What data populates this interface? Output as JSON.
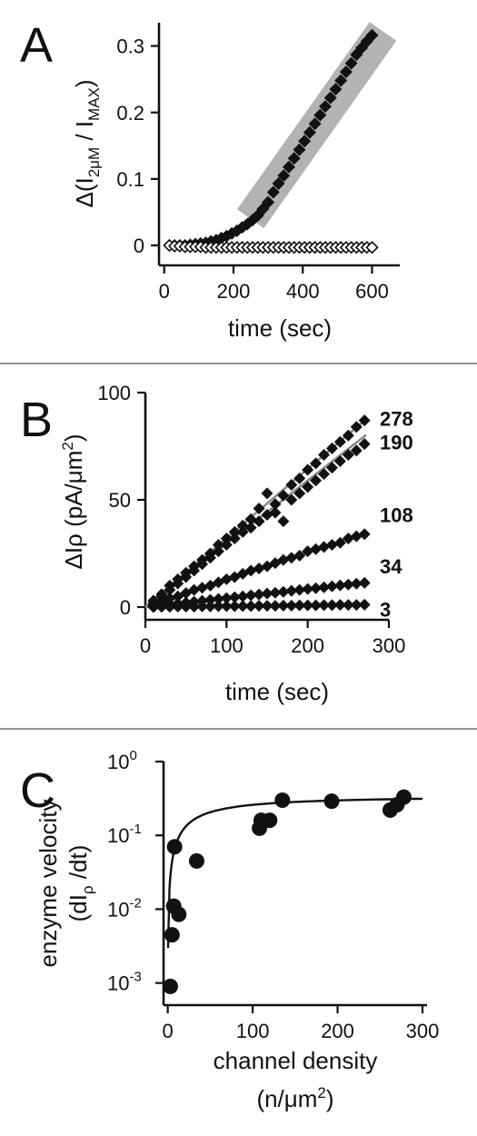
{
  "chart_data": [
    {
      "panel": "A",
      "type": "scatter",
      "ylabel_parts": {
        "prefix": "Δ(I",
        "sub1": "2μM",
        "middle": " / I",
        "sub2": "MAX",
        "suffix": ")"
      },
      "xlabel": "time (sec)",
      "xlim": [
        -15,
        680
      ],
      "ylim": [
        -0.03,
        0.335
      ],
      "xticks": [
        "0",
        "200",
        "400",
        "600"
      ],
      "yticks": [
        "0",
        "0.1",
        "0.2",
        "0.3"
      ],
      "grid": false,
      "highlight": {
        "x_range": [
          270,
          600
        ],
        "note": "shaded linear region"
      },
      "series": [
        {
          "marker": "filled-diamond",
          "x": [
            15,
            30,
            45,
            60,
            75,
            90,
            105,
            120,
            135,
            150,
            165,
            180,
            195,
            210,
            225,
            240,
            255,
            270,
            285,
            300,
            315,
            330,
            345,
            360,
            375,
            390,
            405,
            420,
            435,
            450,
            465,
            480,
            495,
            510,
            525,
            540,
            555,
            570,
            585,
            600
          ],
          "y": [
            0.0,
            0.0,
            0.0,
            0.0,
            0.001,
            0.002,
            0.003,
            0.004,
            0.006,
            0.008,
            0.011,
            0.014,
            0.018,
            0.022,
            0.027,
            0.032,
            0.038,
            0.045,
            0.055,
            0.065,
            0.08,
            0.093,
            0.105,
            0.118,
            0.131,
            0.144,
            0.157,
            0.17,
            0.183,
            0.196,
            0.209,
            0.222,
            0.235,
            0.248,
            0.261,
            0.274,
            0.287,
            0.297,
            0.307,
            0.316
          ]
        },
        {
          "marker": "open-diamond",
          "x": [
            15,
            30,
            45,
            60,
            75,
            90,
            105,
            120,
            135,
            150,
            165,
            180,
            195,
            210,
            225,
            240,
            255,
            270,
            285,
            300,
            315,
            330,
            345,
            360,
            375,
            390,
            405,
            420,
            435,
            450,
            465,
            480,
            495,
            510,
            525,
            540,
            555,
            570,
            585,
            600
          ],
          "y": [
            0.0,
            -0.001,
            -0.001,
            -0.002,
            -0.002,
            -0.002,
            -0.002,
            -0.003,
            -0.003,
            -0.003,
            -0.003,
            -0.003,
            -0.003,
            -0.003,
            -0.003,
            -0.003,
            -0.003,
            -0.003,
            -0.003,
            -0.003,
            -0.003,
            -0.003,
            -0.003,
            -0.003,
            -0.003,
            -0.003,
            -0.003,
            -0.003,
            -0.003,
            -0.003,
            -0.003,
            -0.003,
            -0.003,
            -0.003,
            -0.003,
            -0.003,
            -0.003,
            -0.003,
            -0.003,
            -0.003
          ]
        }
      ]
    },
    {
      "panel": "B",
      "type": "scatter",
      "ylabel_parts": {
        "prefix": "ΔIρ (pA/μm",
        "sup": "2",
        "suffix": ")"
      },
      "xlabel": "time (sec)",
      "xlim": [
        0,
        300
      ],
      "ylim": [
        -3,
        100
      ],
      "xticks": [
        "0",
        "100",
        "200",
        "300"
      ],
      "yticks": [
        "0",
        "50",
        "100"
      ],
      "grid": false,
      "series": [
        {
          "name": "278",
          "slope": 0.322,
          "label_y": 88,
          "x": [
            10,
            20,
            30,
            40,
            50,
            60,
            70,
            80,
            90,
            100,
            110,
            120,
            130,
            140,
            150,
            160,
            170,
            180,
            190,
            200,
            210,
            220,
            230,
            240,
            250,
            260,
            270
          ],
          "y": [
            3,
            6,
            10,
            13,
            16,
            19,
            22,
            25,
            29,
            32,
            35,
            38,
            41,
            46,
            53,
            48,
            52,
            57,
            60,
            64,
            67,
            71,
            74,
            77,
            80,
            84,
            87
          ]
        },
        {
          "name": "190",
          "slope": 0.295,
          "label_y": 77,
          "x": [
            10,
            20,
            30,
            40,
            50,
            60,
            70,
            80,
            90,
            100,
            110,
            120,
            130,
            140,
            150,
            160,
            170,
            180,
            190,
            200,
            210,
            220,
            230,
            240,
            250,
            260,
            270
          ],
          "y": [
            2,
            5,
            8,
            11,
            14,
            17,
            20,
            23,
            26,
            29,
            32,
            35,
            37,
            40,
            43,
            44,
            40,
            50,
            53,
            56,
            59,
            62,
            65,
            68,
            71,
            73,
            76
          ]
        },
        {
          "name": "108",
          "slope": 0.128,
          "label_y": 43,
          "x": [
            10,
            20,
            30,
            40,
            50,
            60,
            70,
            80,
            90,
            100,
            110,
            120,
            130,
            140,
            150,
            160,
            170,
            180,
            190,
            200,
            210,
            220,
            230,
            240,
            250,
            260,
            270
          ],
          "y": [
            1,
            2.5,
            4,
            5,
            6.5,
            8,
            9,
            10,
            11.5,
            13,
            14,
            15.5,
            17,
            18,
            19,
            20.5,
            22,
            23,
            24,
            26,
            27,
            28,
            29,
            30,
            32,
            33,
            34
          ]
        },
        {
          "name": "34",
          "slope": 0.042,
          "label_y": 19,
          "x": [
            10,
            20,
            30,
            40,
            50,
            60,
            70,
            80,
            90,
            100,
            110,
            120,
            130,
            140,
            150,
            160,
            170,
            180,
            190,
            200,
            210,
            220,
            230,
            240,
            250,
            260,
            270
          ],
          "y": [
            0.4,
            0.8,
            1.3,
            1.7,
            2.1,
            2.5,
            2.9,
            3.4,
            3.8,
            4.2,
            4.6,
            5.0,
            5.5,
            5.9,
            6.3,
            6.7,
            7.1,
            7.6,
            8.0,
            8.4,
            8.8,
            9.2,
            9.7,
            10.1,
            10.5,
            10.9,
            11.3
          ]
        },
        {
          "name": "3",
          "slope": 0.004,
          "label_y": -1,
          "x": [
            10,
            20,
            30,
            40,
            50,
            60,
            70,
            80,
            90,
            100,
            110,
            120,
            130,
            140,
            150,
            160,
            170,
            180,
            190,
            200,
            210,
            220,
            230,
            240,
            250,
            260,
            270
          ],
          "y": [
            0,
            0.1,
            0.1,
            0.2,
            0.2,
            0.2,
            0.3,
            0.3,
            0.4,
            0.4,
            0.4,
            0.5,
            0.5,
            0.6,
            0.6,
            0.6,
            0.7,
            0.7,
            0.8,
            0.8,
            0.8,
            0.9,
            0.9,
            1.0,
            1.0,
            1.0,
            1.1
          ]
        }
      ]
    },
    {
      "panel": "C",
      "type": "scatter",
      "ylabel_line1": "enzyme velocity",
      "ylabel_line2_parts": {
        "prefix": "(dI",
        "sub": "ρ",
        "suffix": " /dt)"
      },
      "xlabel_line1": "channel density",
      "xlabel_line2_parts": {
        "prefix": "(n/μm",
        "sup": "2",
        "suffix": ")"
      },
      "xlim": [
        -5,
        300
      ],
      "ylim_log10": [
        -3.3,
        0
      ],
      "y_scale": "log",
      "xticks": [
        "0",
        "100",
        "200",
        "300"
      ],
      "yticks": [
        {
          "base": "10",
          "exp": "0",
          "log": 0
        },
        {
          "base": "10",
          "exp": "-1",
          "log": -1
        },
        {
          "base": "10",
          "exp": "-2",
          "log": -2
        },
        {
          "base": "10",
          "exp": "-3",
          "log": -3
        }
      ],
      "grid": false,
      "points": {
        "x": [
          3,
          5,
          7,
          8,
          13,
          34,
          108,
          110,
          120,
          135,
          193,
          262,
          270,
          278
        ],
        "y": [
          0.0009,
          0.0045,
          0.011,
          0.07,
          0.0085,
          0.045,
          0.125,
          0.16,
          0.16,
          0.3,
          0.29,
          0.22,
          0.26,
          0.33
        ]
      },
      "fit": {
        "model": "Vmax*x/(K+x)",
        "Vmax": 0.35,
        "K": 35,
        "x_min": 2,
        "x_max": 300
      }
    }
  ]
}
